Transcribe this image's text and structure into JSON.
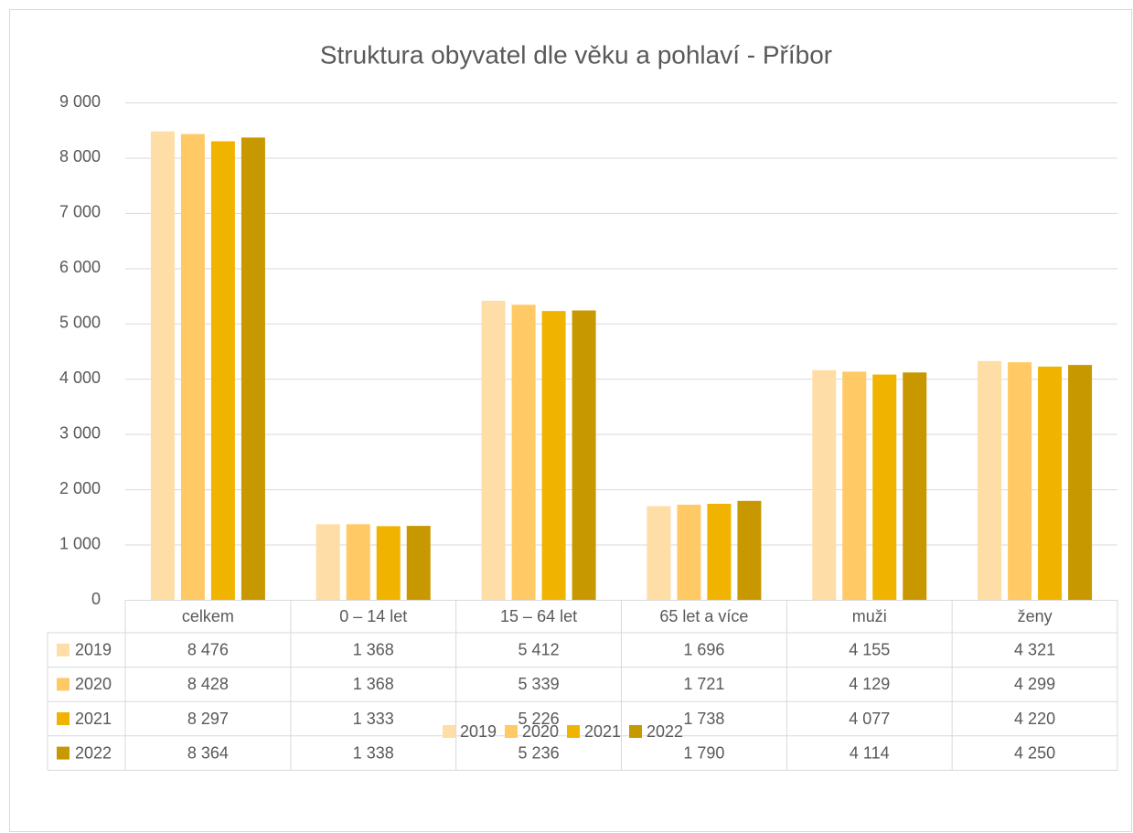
{
  "chart_data": {
    "type": "bar",
    "title": "Struktura obyvatel dle věku a pohlaví - Příbor",
    "categories": [
      "celkem",
      "0 – 14 let",
      "15 – 64 let",
      "65 let a více",
      "muži",
      "ženy"
    ],
    "series": [
      {
        "name": "2019",
        "color": "#ffdda6",
        "values": [
          8476,
          1368,
          5412,
          1696,
          4155,
          4321
        ],
        "value_labels": [
          "8 476",
          "1 368",
          "5 412",
          "1 696",
          "4 155",
          "4 321"
        ]
      },
      {
        "name": "2020",
        "color": "#ffc966",
        "values": [
          8428,
          1368,
          5339,
          1721,
          4129,
          4299
        ],
        "value_labels": [
          "8 428",
          "1 368",
          "5 339",
          "1 721",
          "4 129",
          "4 299"
        ]
      },
      {
        "name": "2021",
        "color": "#f0b400",
        "values": [
          8297,
          1333,
          5226,
          1738,
          4077,
          4220
        ],
        "value_labels": [
          "8 297",
          "1 333",
          "5 226",
          "1 738",
          "4 077",
          "4 220"
        ]
      },
      {
        "name": "2022",
        "color": "#c89800",
        "values": [
          8364,
          1338,
          5236,
          1790,
          4114,
          4250
        ],
        "value_labels": [
          "8 364",
          "1 338",
          "5 236",
          "1 790",
          "4 114",
          "4 250"
        ]
      }
    ],
    "ylim": [
      0,
      9000
    ],
    "yticks": [
      0,
      {
        "value": 1000,
        "label": "1 000"
      },
      {
        "value": 2000,
        "label": "2 000"
      },
      {
        "value": 3000,
        "label": "3 000"
      },
      {
        "value": 4000,
        "label": "4 000"
      },
      {
        "value": 5000,
        "label": "5 000"
      },
      {
        "value": 6000,
        "label": "6 000"
      },
      {
        "value": 7000,
        "label": "7 000"
      },
      {
        "value": 8000,
        "label": "8 000"
      },
      {
        "value": 9000,
        "label": "9 000"
      }
    ],
    "grid": true,
    "legend": "bottom",
    "data_table": true
  }
}
